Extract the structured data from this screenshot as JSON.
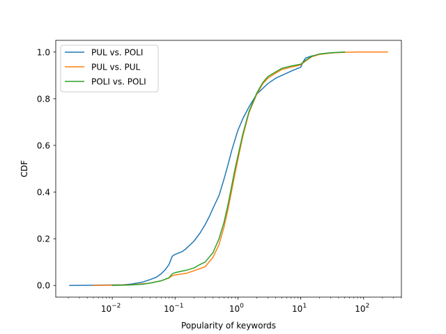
{
  "chart_data": {
    "type": "line",
    "title": "",
    "xlabel": "Popularity of keywords",
    "ylabel": "CDF",
    "xscale": "log",
    "xlim": [
      0.00126,
      400
    ],
    "ylim": [
      -0.05,
      1.05
    ],
    "grid": false,
    "legend_position": "top-left",
    "x_ticks": [
      {
        "value": 0.01,
        "base": "10",
        "exp": "−2"
      },
      {
        "value": 0.1,
        "base": "10",
        "exp": "−1"
      },
      {
        "value": 1,
        "base": "10",
        "exp": "0"
      },
      {
        "value": 10,
        "base": "10",
        "exp": "1"
      },
      {
        "value": 100,
        "base": "10",
        "exp": "2"
      }
    ],
    "y_ticks": [
      {
        "value": 0.0,
        "label": "0.0"
      },
      {
        "value": 0.2,
        "label": "0.2"
      },
      {
        "value": 0.4,
        "label": "0.4"
      },
      {
        "value": 0.6,
        "label": "0.6"
      },
      {
        "value": 0.8,
        "label": "0.8"
      },
      {
        "value": 1.0,
        "label": "1.0"
      }
    ],
    "series": [
      {
        "name": "PUL vs. POLI",
        "color": "#1f77b4",
        "points": [
          [
            0.0021,
            0.0
          ],
          [
            0.005,
            0.001
          ],
          [
            0.01,
            0.002
          ],
          [
            0.015,
            0.003
          ],
          [
            0.02,
            0.006
          ],
          [
            0.03,
            0.014
          ],
          [
            0.04,
            0.025
          ],
          [
            0.05,
            0.035
          ],
          [
            0.06,
            0.05
          ],
          [
            0.07,
            0.068
          ],
          [
            0.08,
            0.09
          ],
          [
            0.09,
            0.125
          ],
          [
            0.1,
            0.133
          ],
          [
            0.13,
            0.145
          ],
          [
            0.15,
            0.158
          ],
          [
            0.2,
            0.19
          ],
          [
            0.25,
            0.225
          ],
          [
            0.3,
            0.26
          ],
          [
            0.35,
            0.295
          ],
          [
            0.4,
            0.33
          ],
          [
            0.5,
            0.385
          ],
          [
            0.6,
            0.455
          ],
          [
            0.7,
            0.52
          ],
          [
            0.8,
            0.58
          ],
          [
            0.9,
            0.625
          ],
          [
            1.0,
            0.665
          ],
          [
            1.2,
            0.715
          ],
          [
            1.5,
            0.765
          ],
          [
            2.0,
            0.82
          ],
          [
            3.0,
            0.865
          ],
          [
            4.0,
            0.888
          ],
          [
            5.0,
            0.9
          ],
          [
            7.0,
            0.918
          ],
          [
            10.0,
            0.935
          ],
          [
            11.0,
            0.96
          ],
          [
            12.0,
            0.975
          ],
          [
            15.0,
            0.983
          ],
          [
            20.0,
            0.99
          ],
          [
            30.0,
            0.996
          ],
          [
            50.0,
            1.0
          ]
        ]
      },
      {
        "name": "PUL vs. PUL",
        "color": "#ff7f0e",
        "points": [
          [
            0.005,
            0.0
          ],
          [
            0.01,
            0.001
          ],
          [
            0.02,
            0.003
          ],
          [
            0.04,
            0.01
          ],
          [
            0.06,
            0.02
          ],
          [
            0.08,
            0.032
          ],
          [
            0.09,
            0.042
          ],
          [
            0.1,
            0.045
          ],
          [
            0.15,
            0.052
          ],
          [
            0.2,
            0.063
          ],
          [
            0.3,
            0.08
          ],
          [
            0.4,
            0.12
          ],
          [
            0.5,
            0.175
          ],
          [
            0.6,
            0.25
          ],
          [
            0.7,
            0.33
          ],
          [
            0.8,
            0.41
          ],
          [
            0.9,
            0.48
          ],
          [
            1.0,
            0.54
          ],
          [
            1.2,
            0.64
          ],
          [
            1.5,
            0.74
          ],
          [
            2.0,
            0.82
          ],
          [
            2.5,
            0.865
          ],
          [
            3.0,
            0.888
          ],
          [
            4.0,
            0.91
          ],
          [
            5.0,
            0.925
          ],
          [
            7.0,
            0.935
          ],
          [
            10.0,
            0.945
          ],
          [
            12.0,
            0.962
          ],
          [
            15.0,
            0.98
          ],
          [
            20.0,
            0.99
          ],
          [
            30.0,
            0.996
          ],
          [
            50.0,
            0.999
          ],
          [
            80.0,
            1.0
          ],
          [
            240.0,
            1.0
          ]
        ]
      },
      {
        "name": "POLI vs. POLI",
        "color": "#2ca02c",
        "points": [
          [
            0.01,
            0.0
          ],
          [
            0.015,
            0.001
          ],
          [
            0.02,
            0.002
          ],
          [
            0.03,
            0.005
          ],
          [
            0.04,
            0.01
          ],
          [
            0.06,
            0.02
          ],
          [
            0.08,
            0.033
          ],
          [
            0.09,
            0.05
          ],
          [
            0.1,
            0.055
          ],
          [
            0.15,
            0.065
          ],
          [
            0.2,
            0.075
          ],
          [
            0.25,
            0.09
          ],
          [
            0.3,
            0.1
          ],
          [
            0.4,
            0.14
          ],
          [
            0.5,
            0.2
          ],
          [
            0.6,
            0.27
          ],
          [
            0.7,
            0.35
          ],
          [
            0.8,
            0.43
          ],
          [
            0.9,
            0.5
          ],
          [
            1.0,
            0.555
          ],
          [
            1.2,
            0.65
          ],
          [
            1.5,
            0.745
          ],
          [
            2.0,
            0.825
          ],
          [
            2.5,
            0.87
          ],
          [
            3.0,
            0.895
          ],
          [
            4.0,
            0.915
          ],
          [
            5.0,
            0.93
          ],
          [
            7.0,
            0.94
          ],
          [
            10.0,
            0.948
          ],
          [
            12.0,
            0.965
          ],
          [
            15.0,
            0.982
          ],
          [
            20.0,
            0.992
          ],
          [
            30.0,
            0.997
          ],
          [
            50.0,
            1.0
          ]
        ]
      }
    ]
  }
}
